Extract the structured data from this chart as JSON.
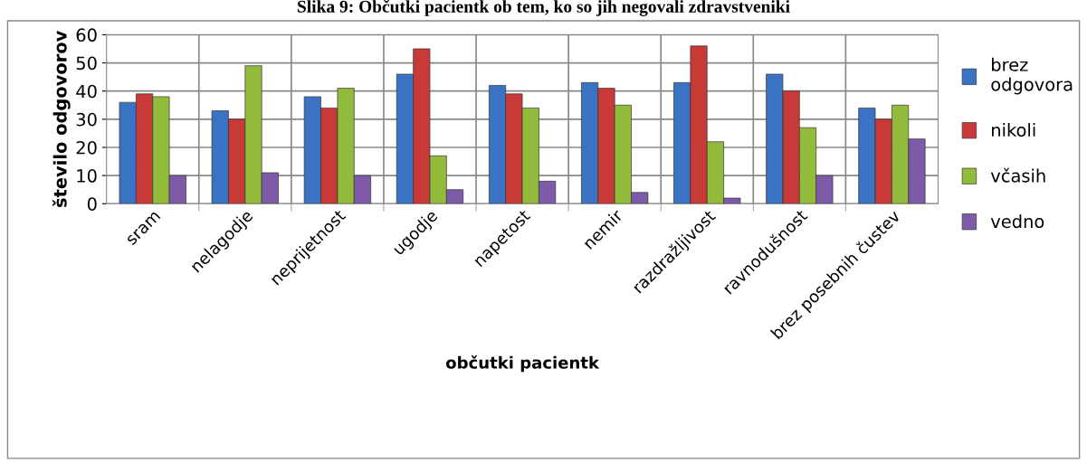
{
  "chart_data": {
    "type": "bar",
    "title": "Slika 9: Občutki pacientk ob tem, ko so jih negovali zdravstveniki",
    "xlabel": "občutki pacientk",
    "ylabel": "število odgovorov",
    "categories": [
      "sram",
      "nelagodje",
      "neprijetnost",
      "ugodje",
      "napetost",
      "nemir",
      "razdražljivost",
      "ravnodušnost",
      "brez posebnih čustev"
    ],
    "series": [
      {
        "name": "brez odgovora",
        "color": "#3a73c4",
        "values": [
          36,
          33,
          38,
          46,
          42,
          43,
          43,
          46,
          34
        ]
      },
      {
        "name": "nikoli",
        "color": "#c83a37",
        "values": [
          39,
          30,
          34,
          55,
          39,
          41,
          56,
          40,
          30
        ]
      },
      {
        "name": "včasih",
        "color": "#92bb3c",
        "values": [
          38,
          49,
          41,
          17,
          34,
          35,
          22,
          27,
          35
        ]
      },
      {
        "name": "vedno",
        "color": "#7e5ba8",
        "values": [
          10,
          11,
          10,
          5,
          8,
          4,
          2,
          10,
          23
        ]
      }
    ],
    "ylim": [
      0,
      60
    ],
    "yticks": [
      0,
      10,
      20,
      30,
      40,
      50,
      60
    ],
    "grid": true,
    "legend": "right"
  }
}
